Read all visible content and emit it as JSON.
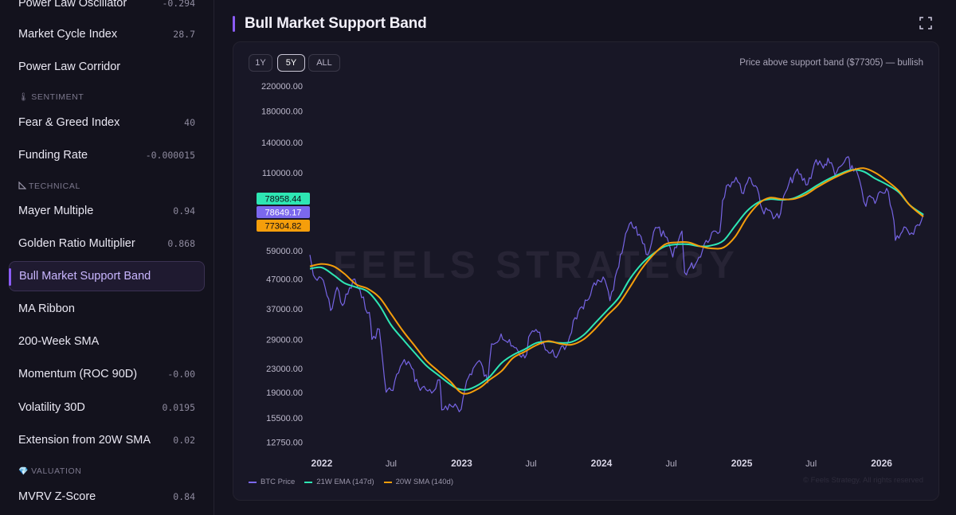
{
  "sidebar": {
    "items": [
      {
        "label": "Power Law Oscillator",
        "value": "-0.294"
      },
      {
        "label": "Market Cycle Index",
        "value": "28.7"
      },
      {
        "label": "Power Law Corridor",
        "value": ""
      },
      {
        "label": "Fear & Greed Index",
        "value": "40"
      },
      {
        "label": "Funding Rate",
        "value": "-0.000015"
      },
      {
        "label": "Mayer Multiple",
        "value": "0.94"
      },
      {
        "label": "Golden Ratio Multiplier",
        "value": "0.868"
      },
      {
        "label": "Bull Market Support Band",
        "value": ""
      },
      {
        "label": "MA Ribbon",
        "value": ""
      },
      {
        "label": "200-Week SMA",
        "value": ""
      },
      {
        "label": "Momentum (ROC 90D)",
        "value": "-0.00"
      },
      {
        "label": "Volatility 30D",
        "value": "0.0195"
      },
      {
        "label": "Extension from 20W SMA",
        "value": "0.02"
      },
      {
        "label": "MVRV Z-Score",
        "value": "0.84"
      }
    ],
    "sections": {
      "sentiment": "SENTIMENT",
      "technical": "TECHNICAL",
      "valuation": "VALUATION"
    }
  },
  "page": {
    "title": "Bull Market Support Band"
  },
  "range": {
    "buttons": [
      "1Y",
      "5Y",
      "ALL"
    ],
    "selected": "5Y"
  },
  "status_text": "Price above support band ($77305) — bullish",
  "watermark": "FEELS STRATEGY",
  "copyright": "© Feels Strategy. All rights reserved",
  "colors": {
    "price": "#7b68ee",
    "ema": "#2ee6b3",
    "sma": "#f59e0b",
    "accent": "#8b5cf6"
  },
  "chart_data": {
    "type": "line",
    "y_scale": "log",
    "ylim": [
      12000,
      230000
    ],
    "y_ticks": [
      "220000.00",
      "180000.00",
      "140000.00",
      "110000.00",
      "59000.00",
      "47000.00",
      "37000.00",
      "29000.00",
      "23000.00",
      "19000.00",
      "15500.00",
      "12750.00"
    ],
    "x_ticks": [
      "2022",
      "Jul",
      "2023",
      "Jul",
      "2024",
      "Jul",
      "2025",
      "Jul",
      "2026"
    ],
    "legend": [
      "BTC Price",
      "21W EMA (147d)",
      "20W SMA (140d)"
    ],
    "last_value_labels": [
      "78958.44",
      "78649.17",
      "77304.82"
    ],
    "series": [
      {
        "name": "BTC Price",
        "color": "#7b68ee",
        "x": [
          "2021-12-01",
          "2021-12-10",
          "2021-12-20",
          "2022-01-05",
          "2022-01-24",
          "2022-02-10",
          "2022-02-24",
          "2022-03-28",
          "2022-04-15",
          "2022-05-05",
          "2022-05-12",
          "2022-05-31",
          "2022-06-18",
          "2022-07-01",
          "2022-07-30",
          "2022-08-15",
          "2022-09-10",
          "2022-09-30",
          "2022-10-20",
          "2022-11-05",
          "2022-11-10",
          "2022-11-25",
          "2022-12-15",
          "2022-12-31",
          "2023-01-14",
          "2023-01-31",
          "2023-02-16",
          "2023-03-10",
          "2023-03-20",
          "2023-04-14",
          "2023-05-10",
          "2023-06-15",
          "2023-06-30",
          "2023-07-14",
          "2023-08-17",
          "2023-09-10",
          "2023-10-01",
          "2023-10-24",
          "2023-11-15",
          "2023-12-08",
          "2024-01-10",
          "2024-01-23",
          "2024-02-15",
          "2024-02-28",
          "2024-03-14",
          "2024-04-13",
          "2024-05-01",
          "2024-05-21",
          "2024-06-15",
          "2024-07-05",
          "2024-07-29",
          "2024-08-05",
          "2024-09-06",
          "2024-09-30",
          "2024-10-20",
          "2024-11-05",
          "2024-11-12",
          "2024-11-22",
          "2024-12-17",
          "2025-01-01",
          "2025-01-20",
          "2025-02-10",
          "2025-02-28",
          "2025-03-10",
          "2025-04-08",
          "2025-04-25",
          "2025-05-22",
          "2025-06-22",
          "2025-07-14",
          "2025-08-02",
          "2025-08-14",
          "2025-09-01",
          "2025-09-20",
          "2025-10-06",
          "2025-10-11",
          "2025-10-25",
          "2025-11-05",
          "2025-11-21",
          "2025-12-01",
          "2025-12-15",
          "2026-01-01",
          "2026-01-14",
          "2026-02-02",
          "2026-02-06",
          "2026-02-20",
          "2026-03-05",
          "2026-03-20",
          "2026-04-05",
          "2026-04-20"
        ],
        "values": [
          57000,
          48500,
          46500,
          46500,
          36500,
          44000,
          38000,
          47000,
          40500,
          36000,
          29000,
          31500,
          19000,
          19300,
          23900,
          24300,
          20000,
          19400,
          19200,
          21000,
          16500,
          16500,
          17300,
          16600,
          20800,
          23000,
          24500,
          20500,
          28000,
          30300,
          27500,
          25000,
          30400,
          31400,
          26000,
          25800,
          27500,
          34500,
          37000,
          44000,
          46600,
          39500,
          51800,
          62000,
          73000,
          66000,
          57000,
          71000,
          66000,
          56000,
          69000,
          49500,
          54000,
          64000,
          69000,
          68500,
          88000,
          99000,
          106000,
          93500,
          106000,
          97500,
          79000,
          81500,
          76500,
          94000,
          111000,
          100000,
          122000,
          114000,
          123500,
          108000,
          117000,
          125000,
          112000,
          114000,
          103000,
          84000,
          91500,
          86000,
          94000,
          97000,
          75000,
          64000,
          67500,
          71000,
          68000,
          72500,
          79000
        ]
      },
      {
        "name": "21W EMA (147d)",
        "color": "#2ee6b3",
        "x": [
          "2021-12-01",
          "2022-01-01",
          "2022-02-01",
          "2022-03-01",
          "2022-04-01",
          "2022-05-01",
          "2022-06-01",
          "2022-07-01",
          "2022-08-01",
          "2022-09-01",
          "2022-10-01",
          "2022-11-01",
          "2022-12-01",
          "2022-12-20",
          "2023-01-15",
          "2023-02-15",
          "2023-03-15",
          "2023-04-15",
          "2023-05-15",
          "2023-06-15",
          "2023-07-15",
          "2023-08-15",
          "2023-09-15",
          "2023-10-15",
          "2023-11-15",
          "2023-12-15",
          "2024-01-15",
          "2024-02-15",
          "2024-03-15",
          "2024-04-15",
          "2024-05-15",
          "2024-06-15",
          "2024-07-15",
          "2024-08-15",
          "2024-09-15",
          "2024-10-15",
          "2024-11-15",
          "2024-12-15",
          "2025-01-15",
          "2025-02-15",
          "2025-03-15",
          "2025-04-15",
          "2025-05-15",
          "2025-06-15",
          "2025-07-15",
          "2025-08-15",
          "2025-09-15",
          "2025-10-15",
          "2025-11-15",
          "2025-12-15",
          "2026-01-15",
          "2026-02-15",
          "2026-03-15",
          "2026-04-20"
        ],
        "values": [
          51000,
          51500,
          48500,
          45500,
          44000,
          42500,
          38000,
          32500,
          29000,
          26000,
          23500,
          21800,
          20300,
          19600,
          19400,
          20200,
          21500,
          24000,
          25600,
          26800,
          28200,
          28500,
          28200,
          28400,
          30000,
          33000,
          36500,
          40500,
          47000,
          53000,
          57500,
          61000,
          62000,
          62000,
          61000,
          61500,
          64000,
          72000,
          81000,
          87000,
          89000,
          88500,
          89500,
          93500,
          99000,
          104500,
          109000,
          112500,
          111000,
          105000,
          100000,
          94000,
          85000,
          78649
        ]
      },
      {
        "name": "20W SMA (140d)",
        "color": "#f59e0b",
        "x": [
          "2021-12-01",
          "2022-01-01",
          "2022-02-01",
          "2022-03-01",
          "2022-04-01",
          "2022-05-01",
          "2022-06-01",
          "2022-07-01",
          "2022-08-01",
          "2022-09-01",
          "2022-10-01",
          "2022-11-01",
          "2022-12-01",
          "2023-01-05",
          "2023-02-15",
          "2023-03-15",
          "2023-04-15",
          "2023-05-15",
          "2023-06-15",
          "2023-07-15",
          "2023-08-15",
          "2023-09-15",
          "2023-10-15",
          "2023-11-15",
          "2023-12-15",
          "2024-01-15",
          "2024-02-15",
          "2024-03-15",
          "2024-04-15",
          "2024-05-15",
          "2024-06-15",
          "2024-07-15",
          "2024-08-15",
          "2024-09-15",
          "2024-10-15",
          "2024-11-15",
          "2024-12-15",
          "2025-01-15",
          "2025-02-15",
          "2025-03-15",
          "2025-04-15",
          "2025-05-15",
          "2025-06-15",
          "2025-07-15",
          "2025-08-15",
          "2025-09-15",
          "2025-10-15",
          "2025-11-15",
          "2025-12-15",
          "2026-01-15",
          "2026-02-15",
          "2026-03-15",
          "2026-04-20"
        ],
        "values": [
          52000,
          53000,
          52000,
          49000,
          45000,
          43500,
          40500,
          35500,
          31000,
          27500,
          24500,
          22500,
          20800,
          18800,
          19600,
          21000,
          22500,
          25000,
          26300,
          27700,
          28600,
          28000,
          27800,
          29000,
          31500,
          35000,
          38500,
          44000,
          51000,
          57000,
          62000,
          63000,
          63000,
          61000,
          60000,
          60500,
          66000,
          77000,
          86000,
          90000,
          89000,
          89000,
          92000,
          97500,
          103000,
          108000,
          112000,
          114000,
          110000,
          103000,
          95000,
          85000,
          77304
        ]
      }
    ]
  }
}
